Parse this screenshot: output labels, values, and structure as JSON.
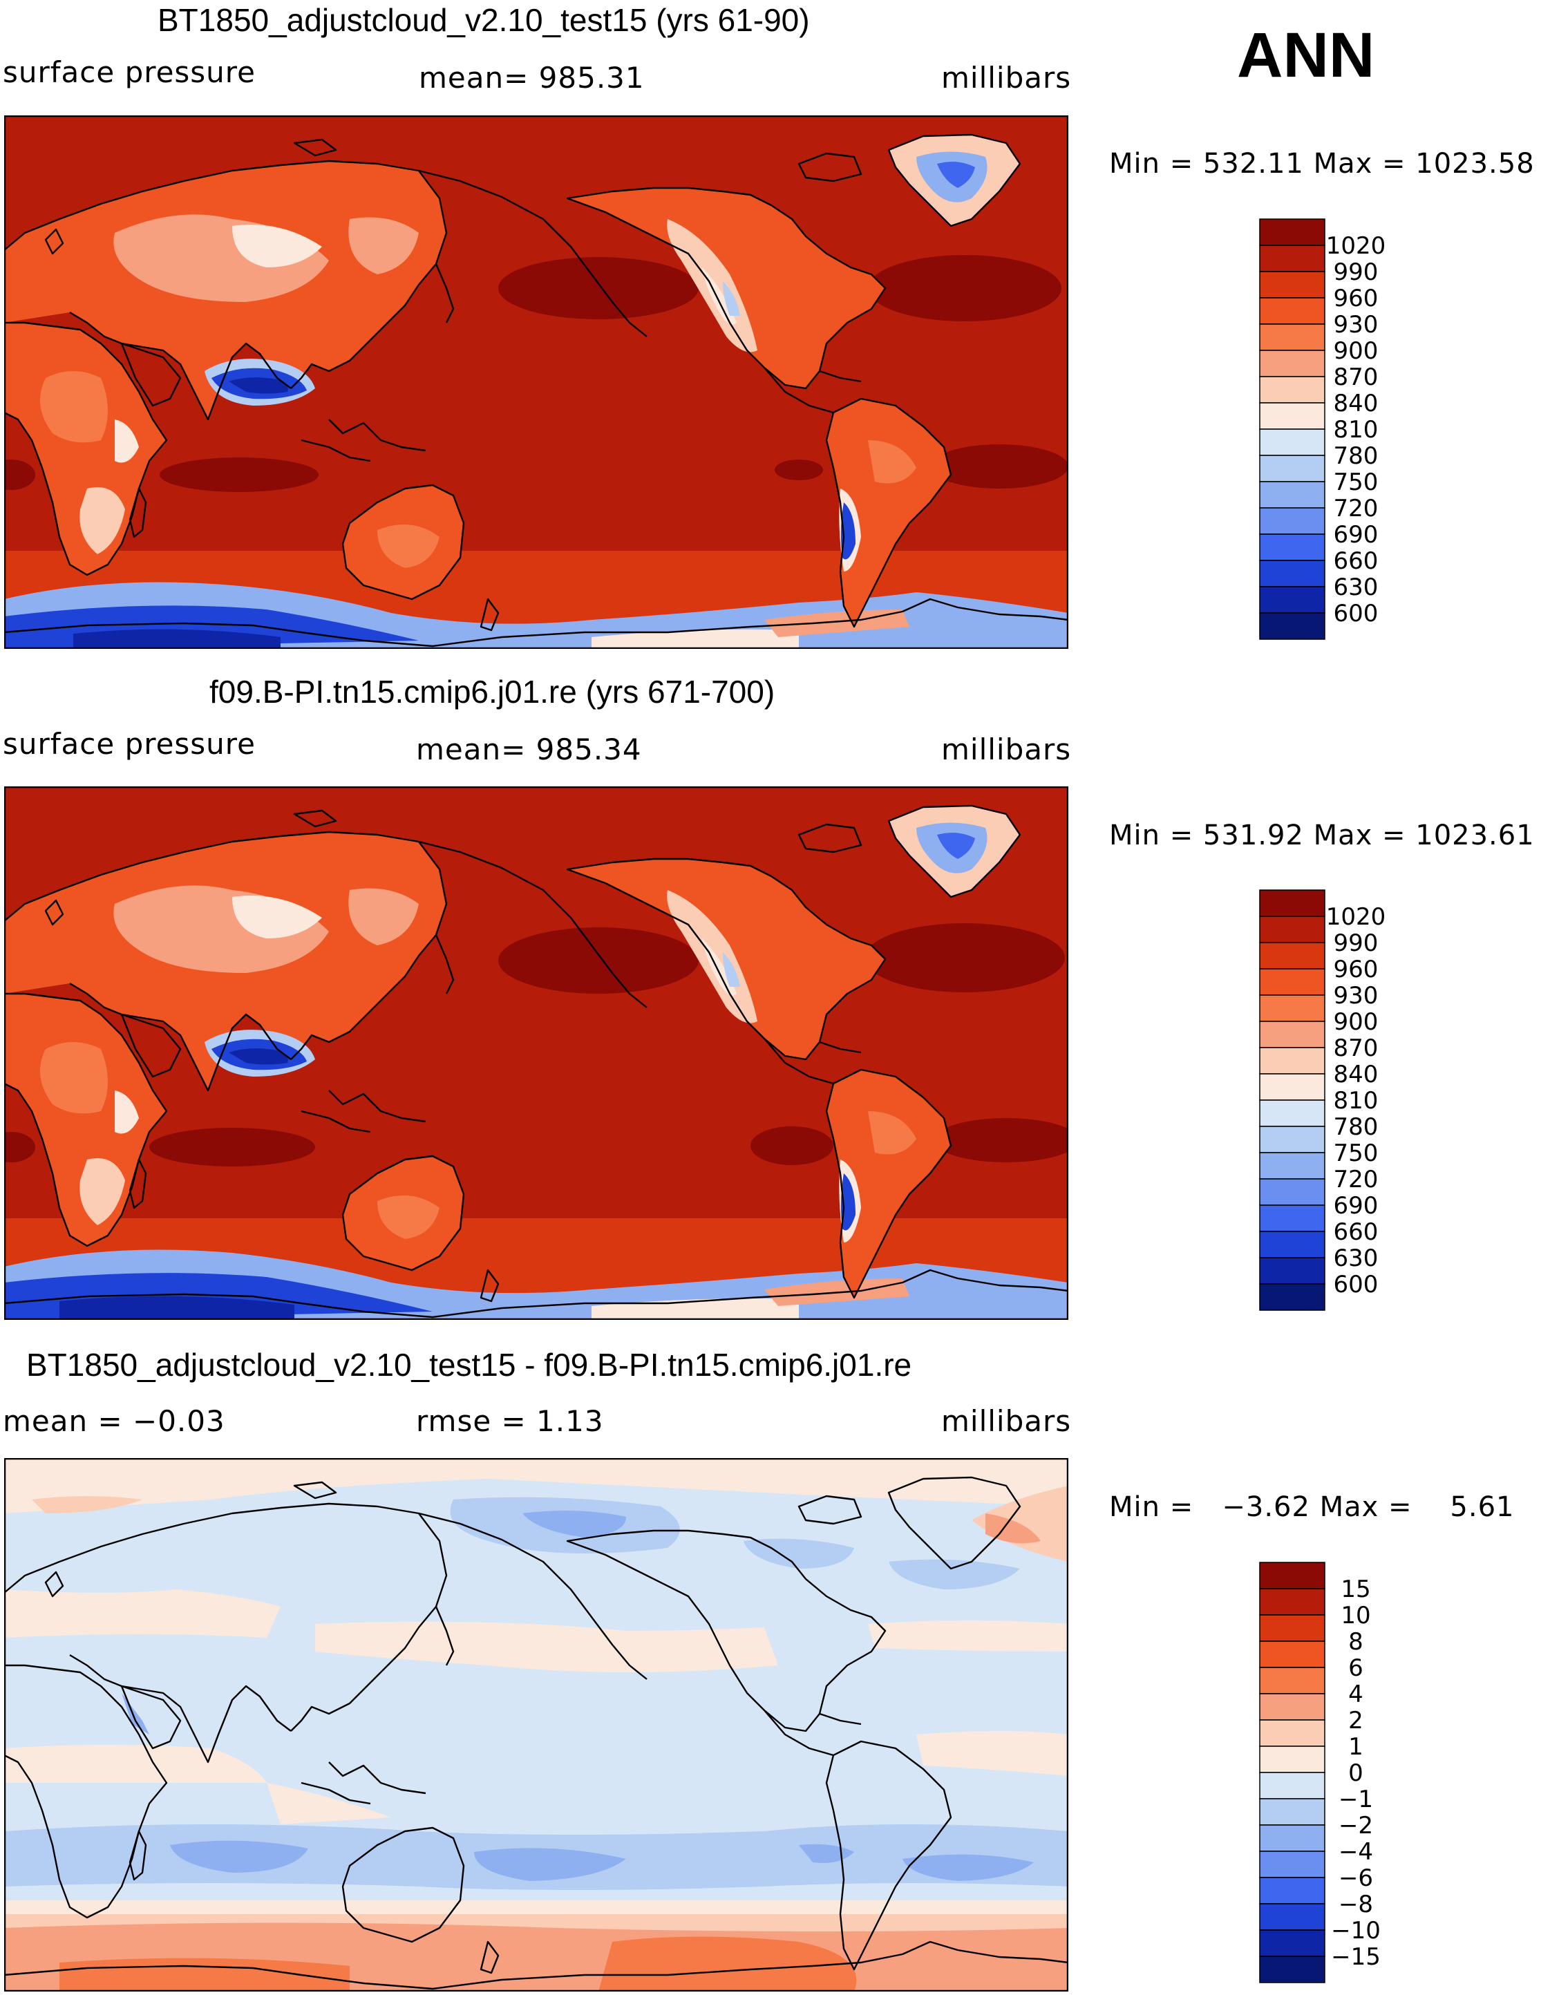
{
  "season": "ANN",
  "panels": [
    {
      "title": "BT1850_adjustcloud_v2.10_test15 (yrs 61-90)",
      "left_label": "surface pressure",
      "center_label": "mean= 985.31",
      "right_label": "millibars",
      "minmax": "Min = 532.11 Max = 1023.58"
    },
    {
      "title": "f09.B-PI.tn15.cmip6.j01.re (yrs 671-700)",
      "left_label": "surface pressure",
      "center_label": "mean= 985.34",
      "right_label": "millibars",
      "minmax": "Min = 531.92 Max = 1023.61"
    },
    {
      "title": "BT1850_adjustcloud_v2.10_test15 - f09.B-PI.tn15.cmip6.j01.re",
      "left_label": "mean =   −0.03",
      "center_label": "rmse =    1.13",
      "right_label": "millibars",
      "minmax": "Min =   −3.62 Max =    5.61"
    }
  ],
  "colorbars": {
    "pressure": {
      "labels": [
        "1020",
        "990",
        "960",
        "930",
        "900",
        "870",
        "840",
        "810",
        "780",
        "750",
        "720",
        "690",
        "660",
        "630",
        "600"
      ],
      "colors": [
        "#8b0a06",
        "#b51c0a",
        "#d9370f",
        "#ef5523",
        "#f57a48",
        "#f7a080",
        "#fbcdb5",
        "#fce9dd",
        "#d6e6f7",
        "#b3cdf3",
        "#8fb0f0",
        "#6a8ff0",
        "#3f66ef",
        "#1f43d6",
        "#0f25a8",
        "#061774"
      ]
    },
    "difference": {
      "labels": [
        "15",
        "10",
        "8",
        "6",
        "4",
        "2",
        "1",
        "0",
        "−1",
        "−2",
        "−4",
        "−6",
        "−8",
        "−10",
        "−15"
      ],
      "colors": [
        "#8b0a06",
        "#b51c0a",
        "#d9370f",
        "#ef5523",
        "#f57a48",
        "#f7a080",
        "#fbcdb5",
        "#fce9dd",
        "#d6e6f7",
        "#b3cdf3",
        "#8fb0f0",
        "#6a8ff0",
        "#3f66ef",
        "#1f43d6",
        "#0f25a8",
        "#061774"
      ]
    }
  },
  "map_colors": {
    "ocean_pressure": "#b51c0a",
    "high_pressure": "#8b0a06",
    "mid_land": "#ef5523",
    "light_land": "#f7a080",
    "pale_land": "#fbcdb5",
    "plateau_light": "#b3cdf3",
    "plateau_mid": "#3f66ef",
    "plateau_dark": "#0f25a8",
    "southern_ocean": "#d9370f",
    "antarctic_light": "#8fb0f0",
    "antarctic_dark": "#1f43d6",
    "diff_pos1": "#fce9dd",
    "diff_pos2": "#fbcdb5",
    "diff_pos3": "#f7a080",
    "diff_pos4": "#f57a48",
    "diff_neg1": "#d6e6f7",
    "diff_neg2": "#b3cdf3",
    "diff_neg3": "#8fb0f0"
  }
}
